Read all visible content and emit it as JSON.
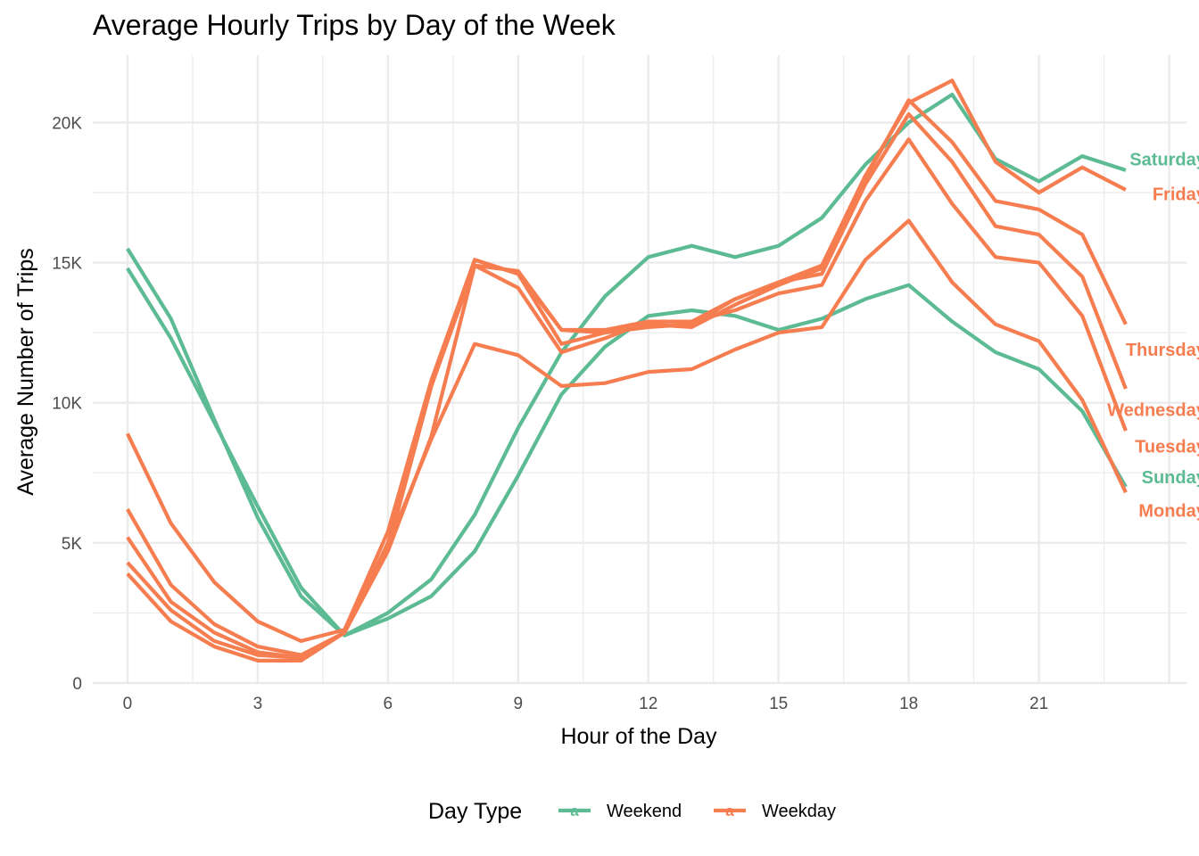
{
  "chart_data": {
    "type": "line",
    "title": "Average Hourly Trips by Day of the Week",
    "xlabel": "Hour of the Day",
    "ylabel": "Average Number of Trips",
    "xlim": [
      -0.8,
      24.4
    ],
    "ylim": [
      0,
      22400
    ],
    "x_ticks": [
      {
        "value": 0,
        "label": "0"
      },
      {
        "value": 3,
        "label": "3"
      },
      {
        "value": 6,
        "label": "6"
      },
      {
        "value": 9,
        "label": "9"
      },
      {
        "value": 12,
        "label": "12"
      },
      {
        "value": 15,
        "label": "15"
      },
      {
        "value": 18,
        "label": "18"
      },
      {
        "value": 21,
        "label": "21"
      }
    ],
    "x_minor_ticks": [
      1.5,
      4.5,
      7.5,
      10.5,
      13.5,
      16.5,
      19.5,
      22.5
    ],
    "x_extra_major_gridlines": [
      24
    ],
    "y_ticks": [
      {
        "value": 0,
        "label": "0"
      },
      {
        "value": 5000,
        "label": "5K"
      },
      {
        "value": 10000,
        "label": "10K"
      },
      {
        "value": 15000,
        "label": "15K"
      },
      {
        "value": 20000,
        "label": "20K"
      }
    ],
    "y_minor_ticks": [
      2500,
      7500,
      12500,
      17500
    ],
    "grid": true,
    "legend": {
      "title": "Day Type",
      "position": "bottom",
      "entries": [
        {
          "label": "Weekend",
          "color": "#5DBB94",
          "key_glyph": "a"
        },
        {
          "label": "Weekday",
          "color": "#F67D50",
          "key_glyph": "a"
        }
      ]
    },
    "colors": {
      "weekend": "#5DBB94",
      "weekday": "#F67D50"
    },
    "x": [
      0,
      1,
      2,
      3,
      4,
      5,
      6,
      7,
      8,
      9,
      10,
      11,
      12,
      13,
      14,
      15,
      16,
      17,
      18,
      19,
      20,
      21,
      22,
      23
    ],
    "series": [
      {
        "name": "Saturday",
        "day_type": "Weekend",
        "values": [
          14800,
          12300,
          9300,
          6300,
          3400,
          1700,
          2500,
          3700,
          6000,
          9100,
          11800,
          13800,
          15200,
          15600,
          15200,
          15600,
          16600,
          18500,
          20000,
          21000,
          18700,
          17900,
          18800,
          18300
        ],
        "label_value": 18700
      },
      {
        "name": "Sunday",
        "day_type": "Weekend",
        "values": [
          15500,
          13000,
          9400,
          5900,
          3100,
          1700,
          2300,
          3100,
          4700,
          7400,
          10300,
          12000,
          13100,
          13300,
          13100,
          12600,
          13000,
          13700,
          14200,
          12900,
          11800,
          11200,
          9700,
          7000
        ],
        "label_value": 7350
      },
      {
        "name": "Friday",
        "day_type": "Weekday",
        "values": [
          8900,
          5700,
          3600,
          2200,
          1500,
          1900,
          5400,
          10800,
          15100,
          14600,
          12600,
          12600,
          12900,
          12900,
          13700,
          14300,
          14900,
          18100,
          20700,
          21500,
          18600,
          17500,
          18400,
          17600
        ],
        "label_value": 17450
      },
      {
        "name": "Thursday",
        "day_type": "Weekday",
        "values": [
          6200,
          3500,
          2100,
          1300,
          1000,
          1800,
          5000,
          10600,
          14900,
          14700,
          12600,
          12500,
          12800,
          12700,
          13500,
          14200,
          14800,
          18000,
          20800,
          19300,
          17200,
          16900,
          16000,
          12800
        ],
        "label_value": 11900
      },
      {
        "name": "Wednesday",
        "day_type": "Weekday",
        "values": [
          5200,
          2900,
          1800,
          1100,
          900,
          1800,
          4800,
          10600,
          15100,
          14600,
          12100,
          12500,
          12700,
          12800,
          13700,
          14300,
          14600,
          17800,
          20300,
          18600,
          16300,
          16000,
          14500,
          10500
        ],
        "label_value": 9750
      },
      {
        "name": "Tuesday",
        "day_type": "Weekday",
        "values": [
          4300,
          2600,
          1500,
          1000,
          900,
          1800,
          4700,
          8800,
          14900,
          14100,
          11800,
          12300,
          12900,
          12900,
          13300,
          13900,
          14200,
          17200,
          19400,
          17100,
          15200,
          15000,
          13100,
          9000
        ],
        "label_value": 8450
      },
      {
        "name": "Monday",
        "day_type": "Weekday",
        "values": [
          3900,
          2200,
          1300,
          800,
          800,
          1800,
          4900,
          8700,
          12100,
          11700,
          10600,
          10700,
          11100,
          11200,
          11900,
          12500,
          12700,
          15100,
          16500,
          14300,
          12800,
          12200,
          10100,
          6800
        ],
        "label_value": 6150
      }
    ]
  }
}
